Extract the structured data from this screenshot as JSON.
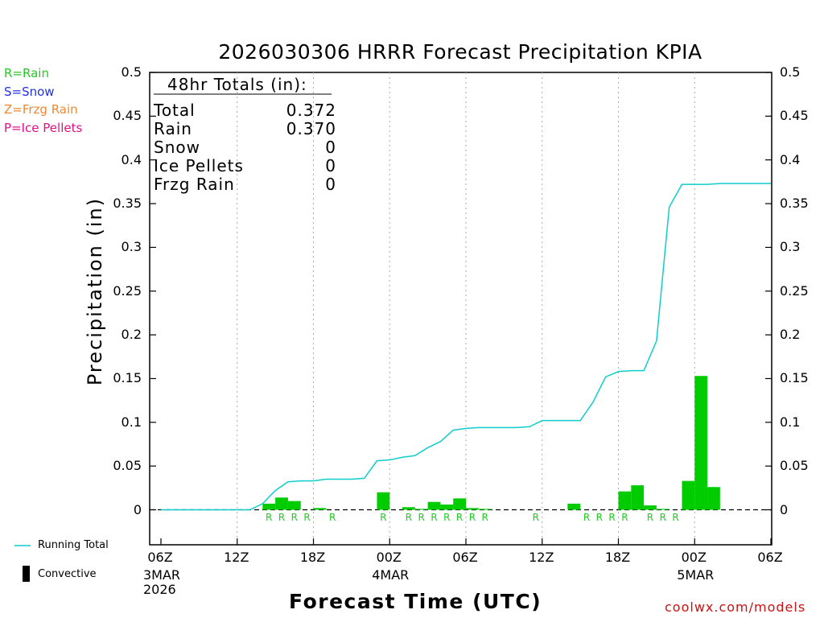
{
  "title": "2026030306 HRRR Forecast Precipitation KPIA",
  "legend": [
    {
      "label": "R=Rain",
      "color": "#22cc22"
    },
    {
      "label": "S=Snow",
      "color": "#2233dd"
    },
    {
      "label": "Z=Frzg Rain",
      "color": "#ee8833"
    },
    {
      "label": "P=Ice Pellets",
      "color": "#dd1188"
    }
  ],
  "ylabel": "Precipitation (in)",
  "xlabel": "Forecast Time (UTC)",
  "credit": "coolwx.com/models",
  "footer_legend": {
    "running_total": "Running Total",
    "convective": "Convective",
    "line_color": "#11cccc",
    "bar_color": "#00cc00"
  },
  "totals": {
    "header": "48hr Totals (in):",
    "rows": [
      {
        "label": "Total",
        "value": "0.372"
      },
      {
        "label": "Rain",
        "value": "0.370"
      },
      {
        "label": "Snow",
        "value": "0"
      },
      {
        "label": "Ice Pellets",
        "value": "0"
      },
      {
        "label": "Frzg Rain",
        "value": "0"
      }
    ]
  },
  "chart_data": {
    "type": "bar",
    "x_unit": "forecast hour",
    "xlim": [
      0,
      48
    ],
    "ylim": [
      -0.04,
      0.5
    ],
    "yticks": [
      "0",
      "0.05",
      "0.1",
      "0.15",
      "0.2",
      "0.25",
      "0.3",
      "0.35",
      "0.4",
      "0.45",
      "0.5"
    ],
    "xticks": [
      {
        "hour": 0,
        "label": "06Z",
        "date": [
          "3MAR",
          "2026"
        ]
      },
      {
        "hour": 6,
        "label": "12Z",
        "date": []
      },
      {
        "hour": 12,
        "label": "18Z",
        "date": []
      },
      {
        "hour": 18,
        "label": "00Z",
        "date": [
          "4MAR"
        ]
      },
      {
        "hour": 24,
        "label": "06Z",
        "date": []
      },
      {
        "hour": 30,
        "label": "12Z",
        "date": []
      },
      {
        "hour": 36,
        "label": "18Z",
        "date": []
      },
      {
        "hour": 42,
        "label": "00Z",
        "date": [
          "5MAR"
        ]
      },
      {
        "hour": 48,
        "label": "06Z",
        "date": []
      }
    ],
    "grid": "dotted vertical",
    "bars": {
      "name": "Hourly precipitation",
      "color": "#00cc00",
      "hours": [
        8,
        9,
        10,
        11,
        12,
        13,
        14,
        15,
        16,
        17,
        18,
        19,
        20,
        21,
        22,
        23,
        24,
        25,
        26,
        27,
        28,
        29,
        30,
        31,
        32,
        33,
        34,
        35,
        36,
        37,
        38,
        39,
        40,
        41,
        42,
        43,
        44,
        45,
        46,
        47,
        48
      ],
      "values": [
        0.007,
        0.014,
        0.01,
        0.0,
        0.002,
        0.0,
        0.0,
        0.0,
        0.0,
        0.02,
        0.0,
        0.003,
        0.001,
        0.009,
        0.006,
        0.013,
        0.002,
        0.001,
        0.0,
        0.0,
        0.0,
        0.0,
        0.0,
        0.0,
        0.007,
        0.0,
        0.0,
        0.0,
        0.021,
        0.028,
        0.005,
        0.001,
        0.0,
        0.033,
        0.153,
        0.026,
        0.0,
        0.0,
        0.0,
        0.0,
        0.0
      ]
    },
    "ptype_markers": {
      "color": "#22cc22",
      "hours": [
        8,
        9,
        10,
        11,
        13,
        17,
        19,
        20,
        21,
        22,
        23,
        24,
        25,
        29,
        33,
        34,
        35,
        36,
        38,
        39,
        40
      ],
      "labels": [
        "R",
        "R",
        "R",
        "R",
        "R",
        "R",
        "R",
        "R",
        "R",
        "R",
        "R",
        "R",
        "R",
        "R",
        "R",
        "R",
        "R",
        "R",
        "R",
        "R",
        "R"
      ]
    },
    "running_total": {
      "name": "Running Total",
      "color": "#11cccc",
      "x": [
        0,
        7,
        8,
        9,
        10,
        11,
        12,
        13,
        14,
        15,
        16,
        17,
        18,
        19,
        20,
        21,
        22,
        23,
        24,
        25,
        26,
        27,
        28,
        29,
        30,
        31,
        32,
        33,
        34,
        35,
        36,
        37,
        38,
        39,
        40,
        41,
        42,
        43,
        44,
        45,
        48
      ],
      "y": [
        0,
        0,
        0.007,
        0.022,
        0.032,
        0.033,
        0.033,
        0.035,
        0.035,
        0.035,
        0.036,
        0.056,
        0.057,
        0.06,
        0.062,
        0.071,
        0.078,
        0.091,
        0.093,
        0.094,
        0.094,
        0.094,
        0.094,
        0.095,
        0.102,
        0.102,
        0.102,
        0.102,
        0.123,
        0.152,
        0.158,
        0.159,
        0.159,
        0.193,
        0.346,
        0.372,
        0.372,
        0.372,
        0.373,
        0.373,
        0.373
      ]
    }
  }
}
